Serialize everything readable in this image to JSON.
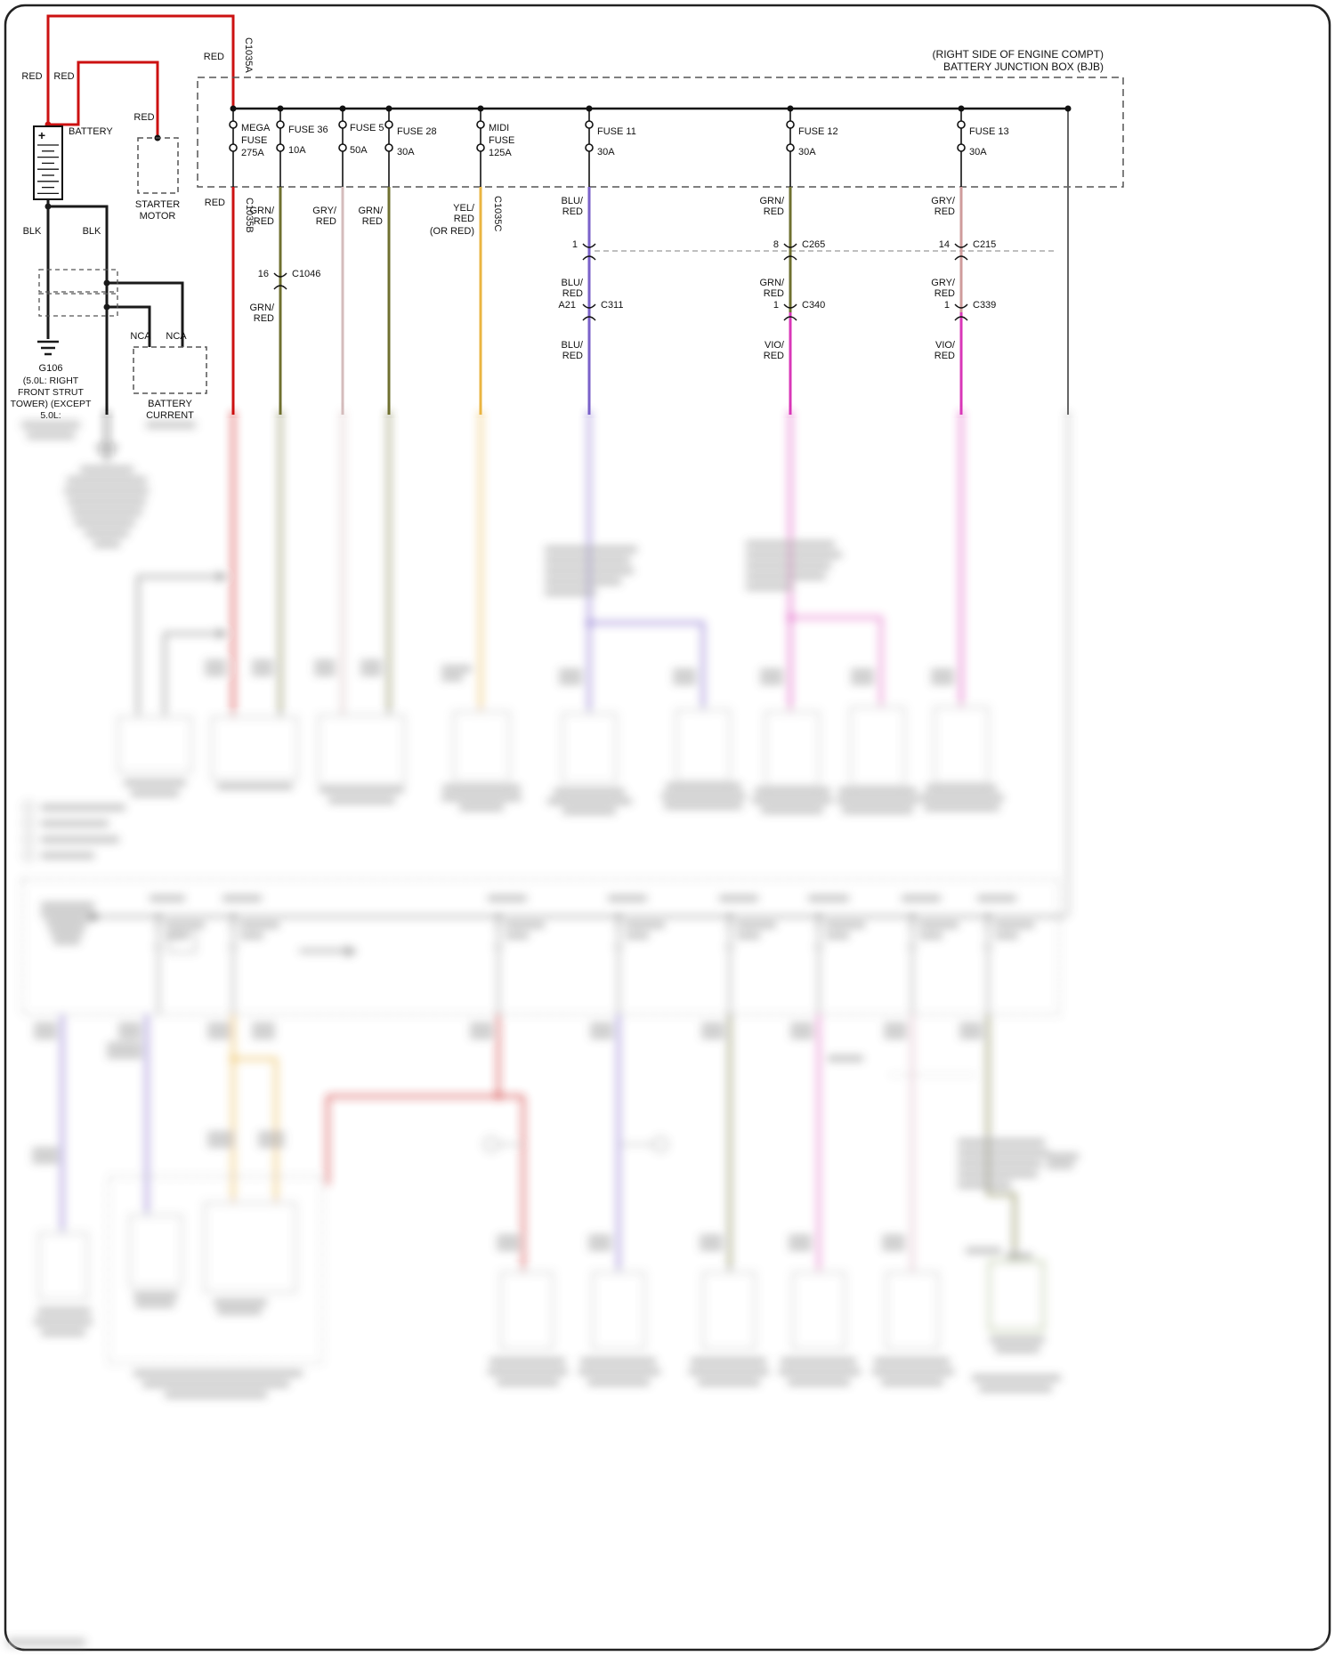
{
  "meta": {
    "compartment_note": "(RIGHT SIDE OF ENGINE COMPT)",
    "box_title": "BATTERY JUNCTION BOX (BJB)"
  },
  "battery": {
    "label": "BATTERY",
    "plus": "+",
    "wire_red_left": "RED",
    "wire_red_right": "RED",
    "wire_blk_left": "BLK",
    "wire_blk_right": "BLK",
    "ground_name": "G106",
    "ground_desc": [
      "(5.0L: RIGHT",
      "FRONT STRUT",
      "TOWER) (EXCEPT",
      "5.0L:"
    ]
  },
  "starter": {
    "wire_red": "RED",
    "label1": "STARTER",
    "label2": "MOTOR"
  },
  "battery_current_sensor": {
    "nca1": "NCA",
    "nca2": "NCA",
    "label1": "BATTERY",
    "label2": "CURRENT"
  },
  "bjb_feed": {
    "color": "RED",
    "connector": "C1035A"
  },
  "fuses": [
    {
      "l1": "MEGA",
      "l2": "FUSE",
      "l3": "275A"
    },
    {
      "l1": "FUSE 36",
      "l2": "10A"
    },
    {
      "l1": "FUSE 5",
      "l2": "50A"
    },
    {
      "l1": "FUSE 28",
      "l2": "30A"
    },
    {
      "l1": "MIDI",
      "l2": "FUSE",
      "l3": "125A"
    },
    {
      "l1": "FUSE 11",
      "l2": "30A"
    },
    {
      "l1": "FUSE 12",
      "l2": "30A"
    },
    {
      "l1": "FUSE 13",
      "l2": "30A"
    }
  ],
  "circuits": {
    "c1": {
      "color": "RED",
      "connector": "C1035B"
    },
    "c2": {
      "t1": "GRN/",
      "t2": "RED",
      "pin": "16",
      "connector": "C1046",
      "b1": "GRN/",
      "b2": "RED"
    },
    "c3": {
      "t1": "GRY/",
      "t2": "RED"
    },
    "c4": {
      "t1": "GRN/",
      "t2": "RED"
    },
    "c5": {
      "t1": "YEL/",
      "t2": "RED",
      "t3": "(OR RED)",
      "connector": "C1035C"
    },
    "c6": {
      "t1": "BLU/",
      "t2": "RED",
      "pin1": "1",
      "m1": "BLU/",
      "m2": "RED",
      "pin2": "A21",
      "conn2": "C311",
      "b1": "BLU/",
      "b2": "RED"
    },
    "c7": {
      "t1": "GRN/",
      "t2": "RED",
      "pin1": "8",
      "conn1": "C265",
      "m1": "GRN/",
      "m2": "RED",
      "pin2": "1",
      "conn2": "C340",
      "b1": "VIO/",
      "b2": "RED"
    },
    "c8": {
      "t1": "GRY/",
      "t2": "RED",
      "pin1": "14",
      "conn1": "C215",
      "m1": "GRY/",
      "m2": "RED",
      "pin2": "1",
      "conn2": "C339",
      "b1": "VIO/",
      "b2": "RED"
    }
  },
  "wire_colors": {
    "red": "#cc1111",
    "black": "#1a1a1a",
    "grn_red": "#6f7030",
    "gry_red": "#cf9c9c",
    "yel_red": "#eab542",
    "blu_red": "#7a62c9",
    "vio_red": "#d937b8"
  }
}
